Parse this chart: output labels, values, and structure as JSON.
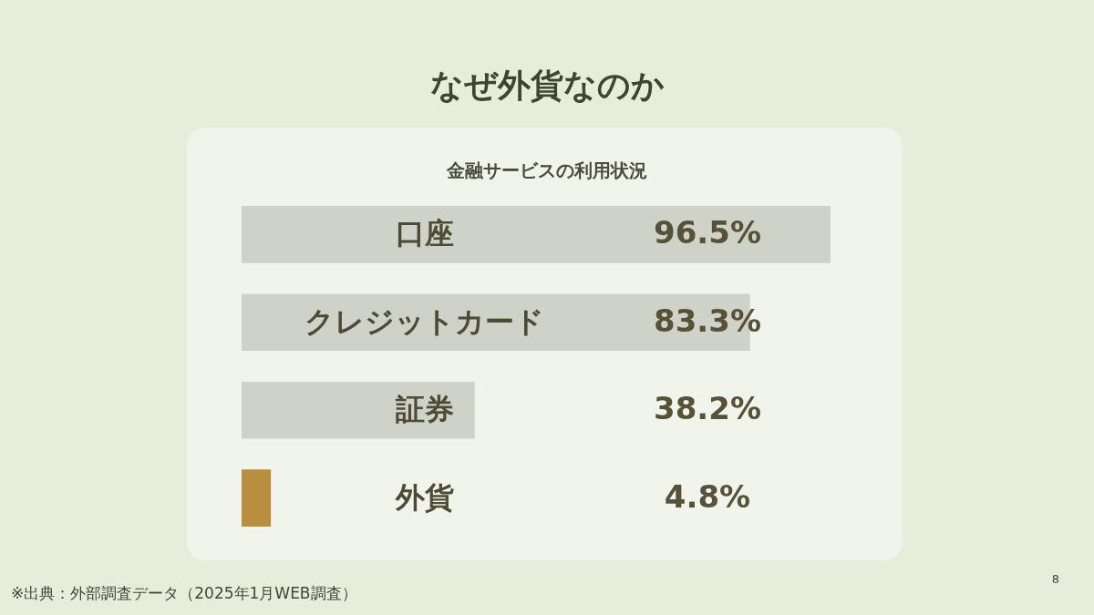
{
  "chart_data": {
    "type": "bar",
    "orientation": "horizontal",
    "title": "なぜ外貨なのか",
    "subtitle": "金融サービスの利用状況",
    "categories": [
      "口座",
      "クレジットカード",
      "証券",
      "外貨"
    ],
    "values": [
      96.5,
      83.3,
      38.2,
      4.8
    ],
    "value_labels": [
      "96.5%",
      "83.3%",
      "38.2%",
      "4.8%"
    ],
    "colors": [
      "#cfd2c7",
      "#cfd2c7",
      "#cfd2c7",
      "#b78f3e"
    ],
    "tick_labels": "y",
    "annotations": [
      "※出典：外部調査データ（2025年1月WEB調査）",
      "8"
    ]
  }
}
